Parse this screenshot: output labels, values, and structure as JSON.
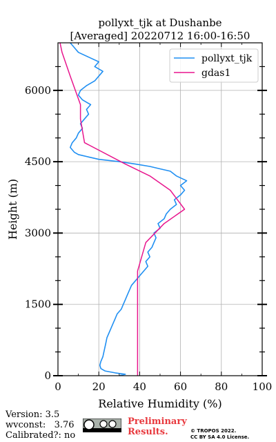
{
  "chart_data": {
    "type": "line",
    "title_line1": "pollyxt_tjk at Dushanbe",
    "title_line2": "[Averaged] 20220712 16:00-16:50",
    "xlabel": "Relative Humidity (%)",
    "ylabel": "Height (m)",
    "xlim": [
      0,
      100
    ],
    "ylim": [
      0,
      7000
    ],
    "xticks": [
      "0",
      "20",
      "40",
      "60",
      "80",
      "100"
    ],
    "yticks": [
      "0",
      "1500",
      "3000",
      "4500",
      "6000"
    ],
    "grid": true,
    "legend_position": "top-right",
    "series": [
      {
        "name": "pollyxt_tjk",
        "color": "#1f8ff2",
        "points": [
          [
            30,
            0
          ],
          [
            33,
            30
          ],
          [
            28,
            60
          ],
          [
            23,
            100
          ],
          [
            21,
            150
          ],
          [
            20.5,
            220
          ],
          [
            21,
            300
          ],
          [
            22,
            400
          ],
          [
            22.5,
            500
          ],
          [
            23,
            600
          ],
          [
            23.5,
            700
          ],
          [
            24,
            800
          ],
          [
            25,
            900
          ],
          [
            26,
            1000
          ],
          [
            27,
            1100
          ],
          [
            28,
            1200
          ],
          [
            29,
            1300
          ],
          [
            31,
            1400
          ],
          [
            32,
            1500
          ],
          [
            33,
            1600
          ],
          [
            34,
            1700
          ],
          [
            35,
            1800
          ],
          [
            36,
            1900
          ],
          [
            38,
            2000
          ],
          [
            40,
            2100
          ],
          [
            42,
            2200
          ],
          [
            44,
            2300
          ],
          [
            43,
            2400
          ],
          [
            45,
            2500
          ],
          [
            44,
            2600
          ],
          [
            46,
            2700
          ],
          [
            47,
            2800
          ],
          [
            48,
            2900
          ],
          [
            47,
            3000
          ],
          [
            50,
            3100
          ],
          [
            49,
            3200
          ],
          [
            52,
            3300
          ],
          [
            53,
            3400
          ],
          [
            55,
            3500
          ],
          [
            58,
            3600
          ],
          [
            57,
            3700
          ],
          [
            60,
            3800
          ],
          [
            62,
            3900
          ],
          [
            60,
            4000
          ],
          [
            63,
            4100
          ],
          [
            58,
            4200
          ],
          [
            55,
            4300
          ],
          [
            50,
            4350
          ],
          [
            45,
            4400
          ],
          [
            38,
            4450
          ],
          [
            30,
            4500
          ],
          [
            20,
            4550
          ],
          [
            15,
            4600
          ],
          [
            10,
            4650
          ],
          [
            8,
            4700
          ],
          [
            6,
            4800
          ],
          [
            7,
            4900
          ],
          [
            9,
            5000
          ],
          [
            10,
            5100
          ],
          [
            12,
            5200
          ],
          [
            11,
            5300
          ],
          [
            13,
            5400
          ],
          [
            15,
            5500
          ],
          [
            14,
            5600
          ],
          [
            16,
            5700
          ],
          [
            12,
            5800
          ],
          [
            10,
            5900
          ],
          [
            11,
            6000
          ],
          [
            14,
            6100
          ],
          [
            18,
            6200
          ],
          [
            20,
            6300
          ],
          [
            22,
            6400
          ],
          [
            18,
            6500
          ],
          [
            20,
            6600
          ],
          [
            15,
            6700
          ],
          [
            10,
            6800
          ],
          [
            8,
            6900
          ],
          [
            6,
            7000
          ]
        ]
      },
      {
        "name": "gdas1",
        "color": "#e8158d",
        "points": [
          [
            39,
            0
          ],
          [
            39,
            500
          ],
          [
            39,
            1000
          ],
          [
            39,
            1500
          ],
          [
            39,
            2000
          ],
          [
            39,
            2200
          ],
          [
            43,
            2800
          ],
          [
            52,
            3200
          ],
          [
            62,
            3500
          ],
          [
            55,
            3900
          ],
          [
            45,
            4200
          ],
          [
            33,
            4450
          ],
          [
            13,
            4900
          ],
          [
            11,
            5400
          ],
          [
            11,
            5700
          ],
          [
            6,
            6300
          ],
          [
            2,
            6800
          ],
          [
            1,
            7000
          ]
        ]
      }
    ]
  },
  "footer": {
    "version": "Version: 3.5",
    "wvconst": "wvconst:   3.76",
    "calibrated": "Calibrated?: no",
    "preliminary_line1": "Preliminary",
    "preliminary_line2": "Results.",
    "copyright_line1": "© TROPOS 2022.",
    "copyright_line2": "CC BY SA 4.0 License."
  }
}
